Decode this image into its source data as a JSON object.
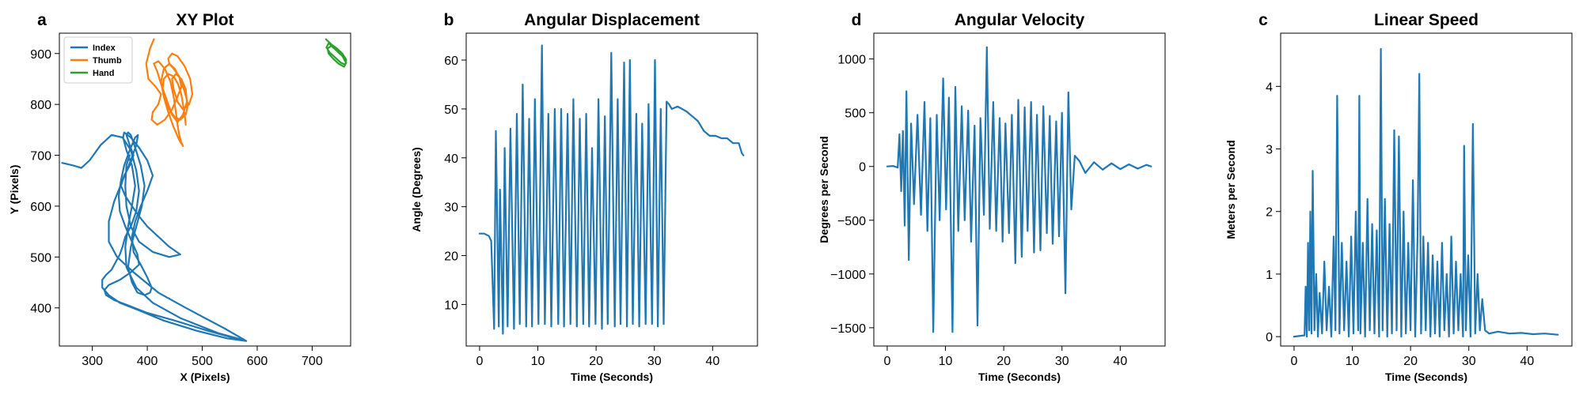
{
  "chart_data": [
    {
      "panel_letter": "a",
      "type": "line",
      "title": "XY Plot",
      "xlabel": "X (Pixels)",
      "ylabel": "Y (Pixels)",
      "xlim": [
        240,
        770
      ],
      "ylim": [
        325,
        940
      ],
      "xticks": [
        300,
        400,
        500,
        600,
        700
      ],
      "yticks": [
        400,
        500,
        600,
        700,
        800,
        900
      ],
      "grid": false,
      "legend": "top-left",
      "series": [
        {
          "name": "Index",
          "color": "#1f77b4",
          "x": [
            245,
            265,
            280,
            295,
            315,
            335,
            355,
            370,
            380,
            385,
            380,
            370,
            360,
            355,
            350,
            345,
            340,
            335,
            325,
            318,
            318,
            330,
            350,
            385,
            430,
            490,
            545,
            580,
            540,
            470,
            420,
            375,
            345,
            330,
            330,
            340,
            355,
            370,
            380,
            383,
            378,
            368,
            358,
            352,
            348,
            350,
            360,
            372,
            382,
            385,
            370,
            350,
            330,
            322,
            325,
            340,
            365,
            400,
            450,
            510,
            560,
            578,
            530,
            460,
            410,
            380,
            362,
            360,
            365,
            372,
            378,
            372,
            362,
            356,
            358,
            370,
            385,
            400,
            410,
            400,
            388,
            378,
            372,
            375,
            388,
            400,
            408,
            405,
            395,
            382,
            372,
            365,
            370,
            380,
            390,
            395,
            388,
            378,
            370,
            365,
            362,
            368,
            375,
            368,
            358,
            352,
            360,
            372,
            385,
            400,
            420,
            440,
            460,
            440,
            410,
            385,
            370,
            362,
            360,
            362,
            368
          ],
          "y": [
            685,
            680,
            675,
            690,
            720,
            740,
            735,
            710,
            670,
            630,
            590,
            560,
            540,
            520,
            505,
            495,
            485,
            475,
            465,
            455,
            440,
            425,
            410,
            395,
            375,
            355,
            340,
            335,
            360,
            400,
            430,
            470,
            500,
            530,
            570,
            610,
            650,
            690,
            720,
            740,
            735,
            710,
            680,
            650,
            620,
            590,
            560,
            530,
            505,
            485,
            470,
            455,
            445,
            435,
            425,
            415,
            405,
            390,
            375,
            355,
            340,
            336,
            350,
            380,
            410,
            440,
            480,
            520,
            560,
            600,
            640,
            680,
            710,
            735,
            745,
            735,
            715,
            690,
            660,
            630,
            600,
            570,
            540,
            510,
            485,
            460,
            440,
            430,
            425,
            430,
            450,
            480,
            520,
            560,
            600,
            640,
            680,
            715,
            740,
            745,
            740,
            720,
            700,
            680,
            660,
            640,
            620,
            600,
            580,
            560,
            540,
            520,
            505,
            500,
            510,
            530,
            560,
            600,
            640,
            680,
            700
          ]
        },
        {
          "name": "Thumb",
          "color": "#ff7f0e",
          "x": [
            412,
            405,
            398,
            402,
            415,
            425,
            420,
            410,
            408,
            418,
            432,
            445,
            455,
            462,
            458,
            448,
            440,
            438,
            445,
            455,
            468,
            478,
            482,
            476,
            465,
            455,
            448,
            445,
            452,
            462,
            470,
            472,
            465,
            455,
            445,
            435,
            425,
            418,
            412,
            420,
            432,
            442,
            448,
            452,
            455,
            458,
            462,
            465,
            458,
            448,
            438,
            430,
            425,
            430,
            440,
            450,
            460,
            468,
            474,
            470,
            460,
            450,
            440,
            432,
            428,
            430,
            438,
            448,
            456,
            462,
            465,
            468,
            470
          ],
          "y": [
            928,
            910,
            880,
            850,
            835,
            820,
            800,
            785,
            770,
            760,
            770,
            790,
            815,
            835,
            855,
            870,
            880,
            890,
            900,
            895,
            875,
            850,
            820,
            800,
            790,
            805,
            830,
            850,
            860,
            850,
            830,
            805,
            780,
            765,
            780,
            810,
            840,
            865,
            880,
            885,
            870,
            845,
            815,
            785,
            760,
            740,
            725,
            718,
            730,
            755,
            785,
            815,
            845,
            870,
            880,
            870,
            850,
            825,
            800,
            780,
            770,
            775,
            790,
            810,
            830,
            850,
            860,
            855,
            840,
            820,
            800,
            780,
            760
          ]
        },
        {
          "name": "Hand",
          "color": "#2ca02c",
          "x": [
            725,
            735,
            745,
            755,
            762,
            760,
            752,
            742,
            732,
            726,
            730,
            740,
            750,
            758,
            762,
            758,
            748,
            738,
            730,
            728,
            735,
            745,
            755,
            760
          ],
          "y": [
            928,
            918,
            910,
            900,
            888,
            878,
            882,
            892,
            902,
            912,
            920,
            912,
            902,
            892,
            882,
            874,
            880,
            890,
            900,
            910,
            915,
            905,
            895,
            885
          ]
        }
      ]
    },
    {
      "panel_letter": "b",
      "type": "line",
      "title": "Angular Displacement",
      "xlabel": "Time (Seconds)",
      "ylabel": "Angle (Degrees)",
      "xlim": [
        -2.3,
        47.7
      ],
      "ylim": [
        1.5,
        65.5
      ],
      "xticks": [
        0,
        10,
        20,
        30,
        40
      ],
      "yticks": [
        10,
        20,
        30,
        40,
        50,
        60
      ],
      "grid": false,
      "series": [
        {
          "color": "#1f77b4",
          "x": [
            0.0,
            0.8,
            1.6,
            2.0,
            2.5,
            2.8,
            3.3,
            3.5,
            4.0,
            4.3,
            4.8,
            5.3,
            5.9,
            6.4,
            6.9,
            7.4,
            8.0,
            8.5,
            9.0,
            9.5,
            10.1,
            10.7,
            11.2,
            11.8,
            12.3,
            12.9,
            13.5,
            14.0,
            14.5,
            15.1,
            15.6,
            16.1,
            16.7,
            17.2,
            17.8,
            18.3,
            18.8,
            19.3,
            19.9,
            20.4,
            21.0,
            21.5,
            22.0,
            22.6,
            23.2,
            23.7,
            24.2,
            24.8,
            25.3,
            25.8,
            26.3,
            26.9,
            27.4,
            27.9,
            28.5,
            29.0,
            29.6,
            30.1,
            30.6,
            31.1,
            31.6,
            32.1,
            32.5,
            33.0,
            34.0,
            35.5,
            36.5,
            37.5,
            38.5,
            39.5,
            40.5,
            41.5,
            42.5,
            43.5,
            44.5,
            45.0,
            45.3
          ],
          "y": [
            24.5,
            24.5,
            24.0,
            23.0,
            5.0,
            45.5,
            5.5,
            33.5,
            4.0,
            42.0,
            5.5,
            46.0,
            5.0,
            49.0,
            6.0,
            55.0,
            5.5,
            48.0,
            5.5,
            52.0,
            6.0,
            63.0,
            6.0,
            49.0,
            5.5,
            50.0,
            6.0,
            50.0,
            5.5,
            49.0,
            6.0,
            52.0,
            5.5,
            48.0,
            6.0,
            49.0,
            5.5,
            42.0,
            6.0,
            52.0,
            5.0,
            48.5,
            6.0,
            61.5,
            5.5,
            52.0,
            6.0,
            59.5,
            5.5,
            60.0,
            6.0,
            49.0,
            5.5,
            47.0,
            6.0,
            51.0,
            6.0,
            60.0,
            5.5,
            50.0,
            6.0,
            51.5,
            51.0,
            50.0,
            50.5,
            49.5,
            48.5,
            47.5,
            45.5,
            44.5,
            44.5,
            44.0,
            44.0,
            43.0,
            43.0,
            41.0,
            40.5
          ]
        }
      ]
    },
    {
      "panel_letter": "d",
      "type": "line",
      "title": "Angular Velocity",
      "xlabel": "Time (Seconds)",
      "ylabel": "Degrees per Second",
      "xlim": [
        -2.3,
        47.7
      ],
      "ylim": [
        -1670,
        1240
      ],
      "xticks": [
        0,
        10,
        20,
        30,
        40
      ],
      "yticks": [
        -1500,
        -1000,
        -500,
        0,
        500,
        1000
      ],
      "grid": false,
      "series": [
        {
          "color": "#1f77b4",
          "x": [
            0.0,
            1.0,
            1.8,
            2.1,
            2.4,
            2.7,
            3.0,
            3.3,
            3.7,
            4.1,
            4.6,
            5.2,
            5.8,
            6.4,
            6.9,
            7.4,
            7.9,
            8.5,
            9.0,
            9.6,
            10.1,
            10.6,
            11.2,
            11.7,
            12.2,
            12.8,
            13.3,
            13.9,
            14.4,
            15.0,
            15.5,
            16.0,
            16.6,
            17.1,
            17.6,
            18.2,
            18.7,
            19.3,
            19.8,
            20.3,
            20.9,
            21.4,
            22.0,
            22.5,
            23.1,
            23.6,
            24.1,
            24.7,
            25.2,
            25.7,
            26.3,
            26.8,
            27.4,
            27.9,
            28.4,
            29.0,
            29.5,
            30.0,
            30.6,
            31.1,
            31.6,
            32.2,
            33.0,
            34.0,
            35.5,
            37.0,
            38.5,
            40.0,
            41.5,
            43.0,
            44.5,
            45.3
          ],
          "y": [
            0,
            5,
            -10,
            300,
            -230,
            330,
            -550,
            700,
            -870,
            400,
            -350,
            480,
            -450,
            600,
            -600,
            450,
            -1540,
            480,
            -500,
            820,
            -400,
            640,
            -1540,
            740,
            -600,
            560,
            -500,
            520,
            -700,
            380,
            -1480,
            450,
            -450,
            1110,
            -580,
            600,
            -600,
            450,
            -700,
            400,
            -620,
            480,
            -900,
            620,
            -840,
            550,
            -600,
            600,
            -800,
            480,
            -780,
            560,
            -620,
            470,
            -720,
            420,
            -650,
            500,
            -1180,
            690,
            -400,
            100,
            50,
            -60,
            40,
            -30,
            30,
            -25,
            20,
            -20,
            15,
            0
          ]
        }
      ]
    },
    {
      "panel_letter": "c",
      "type": "line",
      "title": "Linear Speed",
      "xlabel": "Time (Seconds)",
      "ylabel": "Meters per Second",
      "xlim": [
        -2.3,
        47.7
      ],
      "ylim": [
        -0.15,
        4.85
      ],
      "xticks": [
        0,
        10,
        20,
        30,
        40
      ],
      "yticks": [
        0,
        1,
        2,
        3,
        4
      ],
      "grid": false,
      "series": [
        {
          "color": "#1f77b4",
          "x": [
            0.0,
            1.8,
            2.0,
            2.2,
            2.4,
            2.6,
            2.8,
            3.0,
            3.2,
            3.5,
            3.8,
            4.1,
            4.4,
            4.8,
            5.2,
            5.6,
            6.0,
            6.4,
            6.8,
            7.1,
            7.4,
            7.8,
            8.2,
            8.6,
            9.0,
            9.4,
            9.8,
            10.2,
            10.6,
            11.0,
            11.2,
            11.4,
            11.8,
            12.2,
            12.6,
            13.0,
            13.4,
            13.8,
            14.2,
            14.6,
            14.9,
            15.2,
            15.6,
            16.0,
            16.4,
            16.8,
            17.2,
            17.6,
            18.0,
            18.4,
            18.8,
            19.2,
            19.6,
            20.0,
            20.4,
            20.8,
            21.2,
            21.5,
            21.8,
            22.2,
            22.6,
            23.0,
            23.4,
            23.8,
            24.2,
            24.6,
            25.0,
            25.4,
            25.8,
            26.2,
            26.6,
            27.0,
            27.4,
            27.8,
            28.2,
            28.6,
            29.0,
            29.2,
            29.5,
            29.9,
            30.3,
            30.7,
            31.1,
            31.5,
            31.9,
            32.3,
            32.8,
            33.5,
            35.0,
            37.0,
            39.0,
            41.0,
            43.0,
            45.3
          ],
          "y": [
            0,
            0.02,
            0.8,
            0.0,
            1.5,
            0.1,
            2.0,
            0.05,
            2.65,
            0.1,
            1.0,
            0.0,
            0.7,
            0.05,
            1.2,
            0.1,
            0.8,
            0.0,
            1.6,
            0.1,
            3.85,
            0.05,
            1.5,
            0.1,
            1.2,
            0.0,
            1.6,
            0.05,
            2.0,
            0.1,
            3.85,
            0.05,
            1.5,
            0.0,
            2.2,
            0.1,
            1.8,
            0.05,
            1.7,
            0.0,
            4.6,
            0.1,
            2.2,
            0.0,
            1.8,
            0.05,
            3.3,
            0.1,
            3.2,
            0.0,
            2.0,
            0.05,
            1.5,
            0.1,
            2.5,
            0.0,
            1.6,
            4.2,
            0.05,
            1.6,
            0.1,
            1.5,
            0.0,
            1.3,
            0.05,
            1.2,
            0.0,
            1.5,
            0.1,
            1.0,
            0.0,
            1.6,
            0.05,
            1.2,
            0.1,
            1.0,
            0.0,
            3.05,
            0.1,
            1.3,
            0.0,
            3.4,
            0.05,
            1.0,
            0.1,
            0.6,
            0.1,
            0.05,
            0.08,
            0.05,
            0.06,
            0.04,
            0.05,
            0.03
          ]
        }
      ]
    }
  ]
}
